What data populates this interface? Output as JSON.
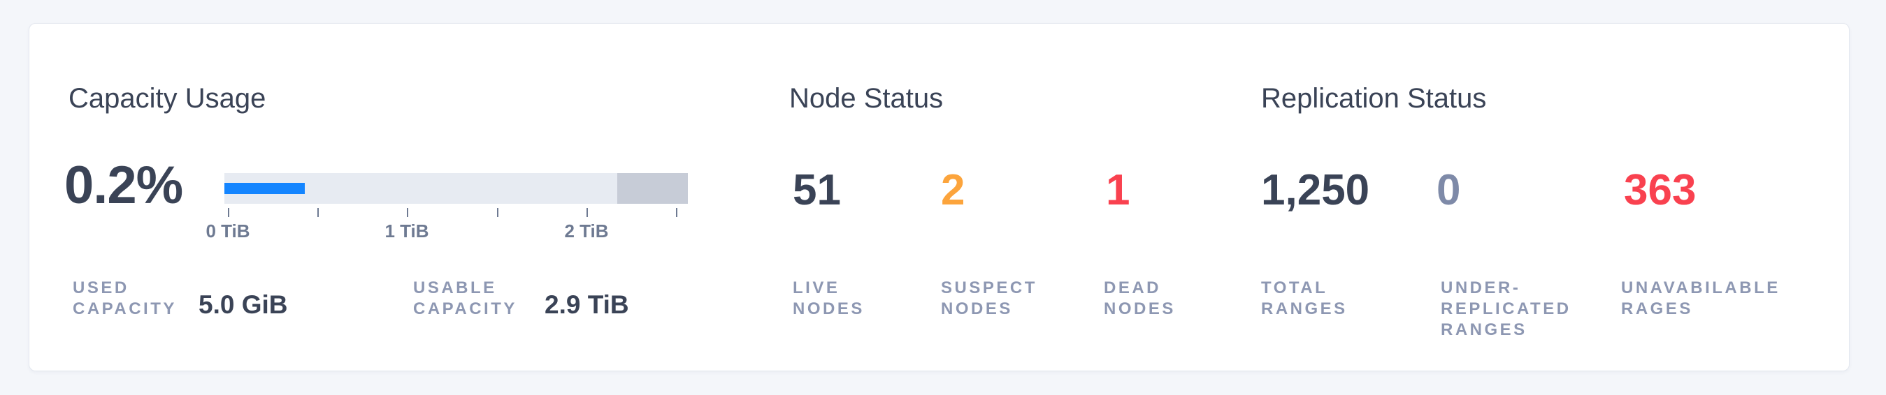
{
  "colors": {
    "page_background": "#F4F6FA",
    "card_background": "#FFFFFF",
    "text_dark": "#3A4356",
    "text_label": "#8D97B2",
    "text_tick": "#6E7A92",
    "bar_used_blue": "#1485FF",
    "bar_track_gray": "#E7EBF2",
    "bar_reserved_gray": "#C7CCD7",
    "warning_orange": "#FCA43C",
    "danger_red": "#F9414F",
    "muted_zero": "#7E8AA8"
  },
  "capacity": {
    "title": "Capacity Usage",
    "percent_used": "0.2%",
    "chart": {
      "type": "bar",
      "used_fraction": "17.35%",
      "reserved_fraction": "15.23%",
      "tick_labels": [
        "0 TiB",
        "1 TiB",
        "2 TiB"
      ],
      "axis_unit": "TiB"
    },
    "stats": [
      {
        "label1": "USED",
        "label2": "CAPACITY",
        "value": "5.0 GiB"
      },
      {
        "label1": "USABLE",
        "label2": "CAPACITY",
        "value": "2.9 TiB"
      }
    ]
  },
  "nodes": {
    "title": "Node Status",
    "stats": [
      {
        "value": "51",
        "color": "#3A4356",
        "label1": "LIVE",
        "label2": "NODES"
      },
      {
        "value": "2",
        "color": "#FCA43C",
        "label1": "SUSPECT",
        "label2": "NODES"
      },
      {
        "value": "1",
        "color": "#F9414F",
        "label1": "DEAD",
        "label2": "NODES"
      }
    ]
  },
  "replication": {
    "title": "Replication Status",
    "stats": [
      {
        "value": "1,250",
        "color": "#3A4356",
        "label1": "TOTAL",
        "label2": "RANGES"
      },
      {
        "value": "0",
        "color": "#7E8AA8",
        "label1": "UNDER-",
        "label2": "REPLICATED",
        "label3": "RANGES"
      },
      {
        "value": "363",
        "color": "#F9414F",
        "label1": "UNAVABILABLE",
        "label2": "RAGES"
      }
    ]
  }
}
